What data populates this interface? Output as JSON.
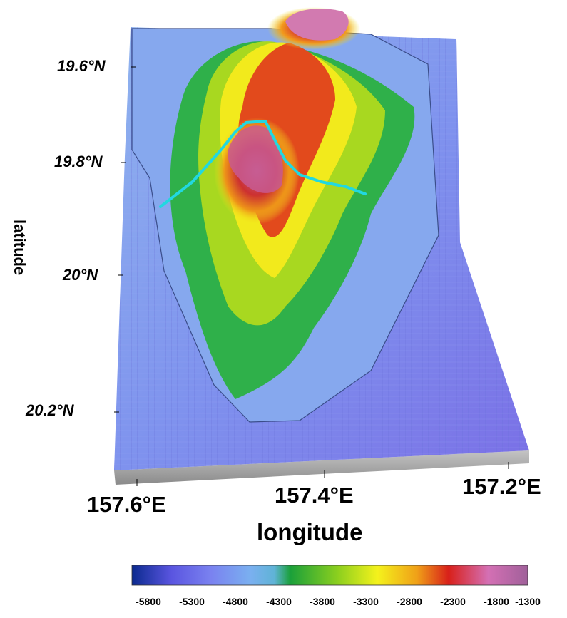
{
  "map": {
    "x_axis_label": "longitude",
    "y_axis_label": "latitude",
    "latitude_ticks": [
      "19.6°N",
      "19.8°N",
      "20°N",
      "20.2°N"
    ],
    "longitude_ticks": [
      "157.6°E",
      "157.4°E",
      "157.2°E"
    ],
    "profile_line_color": "#22d8e0"
  },
  "colorbar": {
    "ticks": [
      "-5800",
      "-5300",
      "-4800",
      "-4300",
      "-3800",
      "-3300",
      "-2800",
      "-2300",
      "-1800",
      "-1300"
    ],
    "colors": [
      "#0b2a8f",
      "#5a55e0",
      "#7a82f0",
      "#7ab0f0",
      "#1aa03a",
      "#8ccf1e",
      "#f4f21c",
      "#f0a018",
      "#d8201a",
      "#d470b4",
      "#a0609a"
    ]
  }
}
